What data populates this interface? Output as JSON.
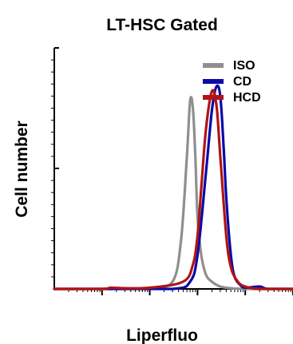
{
  "chart_data": {
    "type": "line",
    "title": "LT-HSC Gated",
    "xlabel": "Liperfluo",
    "ylabel": "Cell number",
    "x_scale": "log",
    "xlim": [
      1,
      100000
    ],
    "ylim": [
      0,
      100
    ],
    "grid": false,
    "legend_position": "top-right",
    "series": [
      {
        "name": "ISO",
        "color": "#8f8f8f",
        "x": [
          1,
          10,
          100,
          300,
          450,
          600,
          700,
          800,
          900,
          1000,
          1200,
          1500,
          2000,
          3000,
          5000,
          10000,
          100000
        ],
        "y": [
          0,
          0,
          0.5,
          3,
          20,
          55,
          78,
          75,
          55,
          30,
          14,
          6,
          3,
          1,
          0.3,
          0,
          0
        ]
      },
      {
        "name": "CD",
        "color": "#0a0aa8",
        "x": [
          1,
          10,
          300,
          700,
          1000,
          1500,
          2000,
          2500,
          3000,
          3500,
          4000,
          5000,
          6000,
          8000,
          10000,
          20000,
          30000,
          100000
        ],
        "y": [
          0,
          0,
          0,
          3,
          14,
          48,
          74,
          84,
          80,
          60,
          38,
          14,
          5,
          1.5,
          0.5,
          1,
          0,
          0
        ]
      },
      {
        "name": "HCD",
        "color": "#b01414",
        "x": [
          1,
          10,
          15,
          30,
          100,
          500,
          800,
          1000,
          1200,
          1500,
          2000,
          2500,
          3000,
          4000,
          5000,
          7000,
          10000,
          20000,
          100000
        ],
        "y": [
          0,
          0,
          0.5,
          0.3,
          0.5,
          3,
          10,
          22,
          42,
          66,
          82,
          76,
          55,
          22,
          9,
          3,
          1,
          0,
          0
        ]
      }
    ]
  }
}
